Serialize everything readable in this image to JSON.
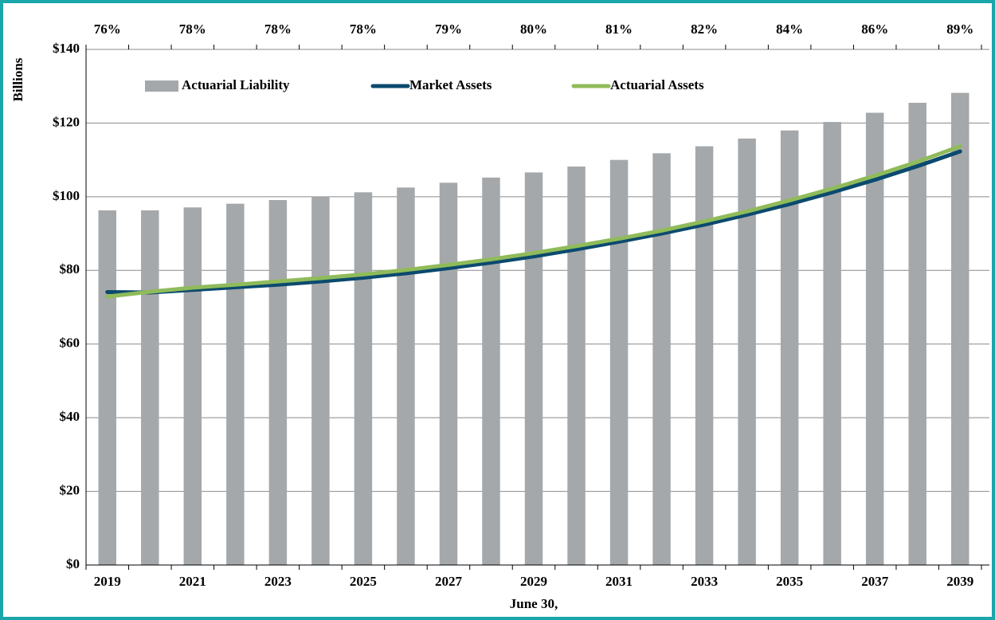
{
  "chart_data": {
    "type": "bar_line",
    "y_axis_label": "Billions",
    "x_axis_label": "June 30,",
    "categories": [
      "2019",
      null,
      "2021",
      null,
      "2023",
      null,
      "2025",
      null,
      "2027",
      null,
      "2029",
      null,
      "2031",
      null,
      "2033",
      null,
      "2035",
      null,
      "2037",
      null,
      "2039"
    ],
    "annotations": [
      "76%",
      null,
      "78%",
      null,
      "78%",
      null,
      "78%",
      null,
      "79%",
      null,
      "80%",
      null,
      "81%",
      null,
      "82%",
      null,
      "84%",
      null,
      "86%",
      null,
      "89%"
    ],
    "series": [
      {
        "name": "Actuarial Liability",
        "type": "bar",
        "color": "#a5a8aa",
        "values": [
          96.3,
          96.3,
          97.1,
          98.1,
          99.1,
          100.1,
          101.2,
          102.5,
          103.8,
          105.2,
          106.6,
          108.2,
          110.0,
          111.8,
          113.7,
          115.8,
          118.0,
          120.3,
          122.8,
          125.5,
          128.2
        ]
      },
      {
        "name": "Market Assets",
        "type": "line",
        "color": "#0b4a6f",
        "values": [
          74.1,
          74.0,
          74.7,
          75.4,
          76.1,
          77.0,
          78.0,
          79.2,
          80.6,
          82.1,
          83.8,
          85.7,
          87.8,
          90.0,
          92.4,
          95.1,
          98.0,
          101.2,
          104.6,
          108.3,
          112.3
        ]
      },
      {
        "name": "Actuarial Assets",
        "type": "line",
        "color": "#8fbb5a",
        "values": [
          72.9,
          74.2,
          75.3,
          76.1,
          77.0,
          77.9,
          78.9,
          80.1,
          81.5,
          83.0,
          84.7,
          86.6,
          88.6,
          90.8,
          93.3,
          96.0,
          99.0,
          102.2,
          105.7,
          109.5,
          113.7
        ]
      }
    ],
    "ylim": [
      0,
      140
    ],
    "yticks": [
      {
        "value": 0,
        "label": "$0"
      },
      {
        "value": 20,
        "label": "$20"
      },
      {
        "value": 40,
        "label": "$40"
      },
      {
        "value": 60,
        "label": "$60"
      },
      {
        "value": 80,
        "label": "$80"
      },
      {
        "value": 100,
        "label": "$100"
      },
      {
        "value": 120,
        "label": "$120"
      },
      {
        "value": 140,
        "label": "$140"
      }
    ],
    "grid": true,
    "legend": "top"
  }
}
